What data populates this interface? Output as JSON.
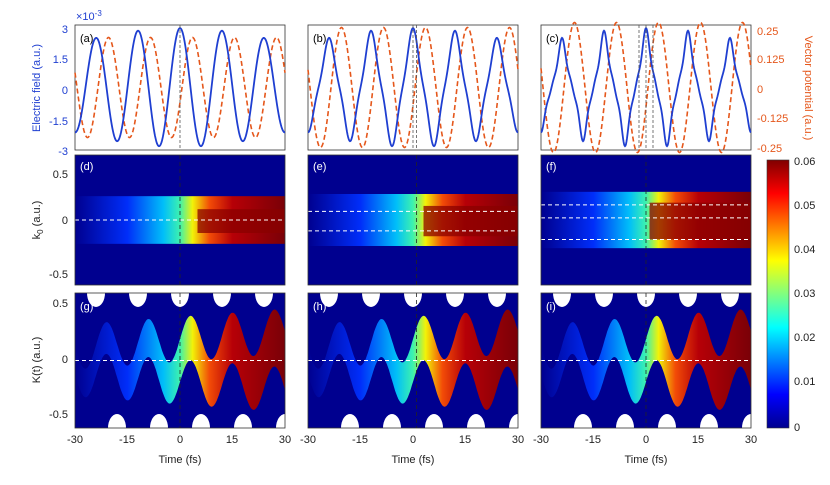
{
  "chart_data": {
    "type": "multi-panel",
    "layout": "3x3 grid of panels",
    "top_row": {
      "type": "line",
      "left_axis": {
        "label": "Electric field (a.u.)",
        "exponent": "×10",
        "exponent_power": "-3",
        "ticks": [
          "3",
          "1.5",
          "0",
          "-1.5",
          "-3"
        ],
        "range": [
          -3,
          3
        ],
        "color": "#1f3fd1"
      },
      "right_axis": {
        "label": "Vector potential (a.u.)",
        "ticks": [
          "0.25",
          "0.125",
          "0",
          "-0.125",
          "-0.25"
        ],
        "range": [
          -0.25,
          0.25
        ],
        "color": "#e5571b"
      },
      "panels": [
        {
          "label": "(a)",
          "field_harmonics": [
            [
              1,
              1.0
            ]
          ],
          "potential_amp": 0.2,
          "zero_lines": [
            0
          ]
        },
        {
          "label": "(b)",
          "field_harmonics": [
            [
              1,
              0.9
            ],
            [
              3,
              0.1
            ]
          ],
          "potential_amp": 0.24,
          "zero_lines": [
            0,
            1
          ]
        },
        {
          "label": "(c)",
          "field_harmonics": [
            [
              1,
              0.8
            ],
            [
              3,
              0.15
            ],
            [
              5,
              0.05
            ]
          ],
          "potential_amp": 0.26,
          "zero_lines": [
            -2,
            0,
            2
          ]
        }
      ]
    },
    "middle_row": {
      "type": "heatmap",
      "ylabel": "k",
      "ylabel_sub": "0",
      "ylabel_unit": "(a.u.)",
      "yticks": [
        "0.5",
        "0",
        "-0.5"
      ],
      "yrange": [
        -0.6,
        0.6
      ],
      "panels": [
        {
          "label": "(d)",
          "dashed_k0": [
            0
          ],
          "vline": 0
        },
        {
          "label": "(e)",
          "dashed_k0": [
            0.08,
            -0.1
          ],
          "vline": 1
        },
        {
          "label": "(f)",
          "dashed_k0": [
            0.14,
            0.02,
            -0.18
          ],
          "vline": 0
        }
      ]
    },
    "bottom_row": {
      "type": "heatmap",
      "ylabel": "K(t) (a.u.)",
      "yticks": [
        "0.5",
        "0",
        "-0.5"
      ],
      "yrange": [
        -0.6,
        0.6
      ],
      "panels": [
        {
          "label": "(g)",
          "dashed_k": [
            0
          ],
          "vline": 0
        },
        {
          "label": "(h)",
          "dashed_k": [
            0
          ],
          "vline": 1
        },
        {
          "label": "(i)",
          "dashed_k": [
            0
          ],
          "vline": 0
        }
      ]
    },
    "x_axis": {
      "label": "Time (fs)",
      "ticks": [
        "-30",
        "-15",
        "0",
        "15",
        "30"
      ],
      "range": [
        -30,
        30
      ]
    },
    "colorbar": {
      "ticks": [
        "0.06",
        "0.05",
        "0.04",
        "0.03",
        "0.02",
        "0.01",
        "0"
      ],
      "range": [
        0,
        0.06
      ]
    }
  }
}
